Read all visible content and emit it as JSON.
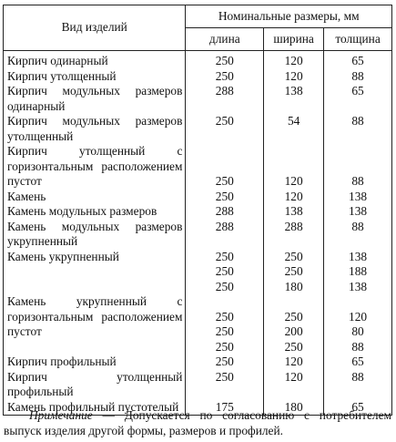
{
  "table": {
    "header_item": "Вид изделий",
    "header_group": "Номинальные размеры, мм",
    "header_dims": [
      "длина",
      "ширина",
      "толщина"
    ],
    "rows": [
      {
        "name": "Кирпич одинарный",
        "dims": [
          [
            "250",
            "120",
            "65"
          ]
        ]
      },
      {
        "name": "Кирпич утолщенный",
        "dims": [
          [
            "250",
            "120",
            "88"
          ]
        ]
      },
      {
        "name": "Кирпич модульных размеров одинарный",
        "dims": [
          [
            "288",
            "138",
            "65"
          ]
        ]
      },
      {
        "name": "Кирпич модульных размеров утолщенный",
        "dims": [
          [
            "250",
            "54",
            "88"
          ]
        ]
      },
      {
        "name": "Кирпич утолщенный с горизонтальным расположением пустот",
        "dims": [
          [
            "250",
            "120",
            "88"
          ]
        ],
        "valign": "bottom"
      },
      {
        "name": "Камень",
        "dims": [
          [
            "250",
            "120",
            "138"
          ]
        ]
      },
      {
        "name": "Камень модульных размеров",
        "dims": [
          [
            "288",
            "138",
            "138"
          ]
        ]
      },
      {
        "name": "Камень модульных размеров укрупненный",
        "dims": [
          [
            "288",
            "288",
            "88"
          ]
        ]
      },
      {
        "name": "Камень укрупненный",
        "dims": [
          [
            "250",
            "250",
            "138"
          ],
          [
            "250",
            "250",
            "188"
          ],
          [
            "250",
            "180",
            "138"
          ]
        ]
      },
      {
        "name": "Камень укрупненный с горизонтальным расположением пустот",
        "dims": [
          [
            "250",
            "250",
            "120"
          ],
          [
            "250",
            "200",
            "80"
          ],
          [
            "250",
            "250",
            "88"
          ]
        ],
        "spacer": true
      },
      {
        "name": "Кирпич профильный",
        "dims": [
          [
            "250",
            "120",
            "65"
          ]
        ]
      },
      {
        "name": "Кирпич утолщенный профильный",
        "dims": [
          [
            "250",
            "120",
            "88"
          ]
        ]
      },
      {
        "name": "Камень профильный пустотелый",
        "dims": [
          [
            "175",
            "180",
            "65"
          ]
        ]
      }
    ]
  },
  "note": {
    "label": "Примечание",
    "text": " — Допускается по согласованию с потребителем выпуск изделия другой формы, размеров и профилей."
  }
}
